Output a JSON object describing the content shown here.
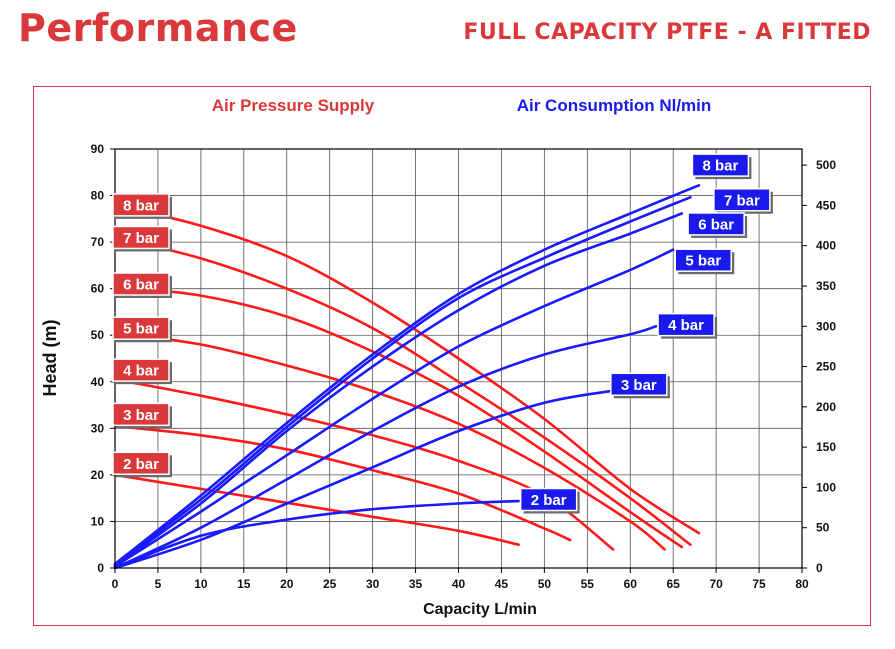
{
  "header": {
    "title": "Performance",
    "subtitle": "FULL CAPACITY PTFE - A FITTED"
  },
  "colors": {
    "brand_red": "#d9393a",
    "head_red": "#ff1a1a",
    "air_blue": "#1a1aff",
    "head_badge": "#d9393a",
    "air_badge": "#1a1aee"
  },
  "chart_data": {
    "type": "line",
    "legend": {
      "left": "Air Pressure Supply",
      "right": "Air Consumption Nl/min"
    },
    "xlabel": "Capacity L/min",
    "ylabel": "Head (m)",
    "y2label": "",
    "xlim": [
      0,
      80
    ],
    "ylim": [
      0,
      90
    ],
    "y2lim": [
      0,
      520
    ],
    "xticks": [
      "0",
      "5",
      "10",
      "15",
      "20",
      "25",
      "30",
      "35",
      "40",
      "45",
      "50",
      "55",
      "60",
      "65",
      "70",
      "75",
      "80"
    ],
    "yticks": [
      "0",
      "10",
      "20",
      "30",
      "40",
      "50",
      "60",
      "70",
      "80",
      "90"
    ],
    "y2ticks": [
      "0",
      "50",
      "100",
      "150",
      "200",
      "250",
      "300",
      "350",
      "400",
      "450",
      "500"
    ],
    "grid": true,
    "head_series": [
      {
        "name": "8 bar",
        "points": [
          [
            0,
            78
          ],
          [
            10,
            73.5
          ],
          [
            20,
            67
          ],
          [
            30,
            57
          ],
          [
            40,
            45
          ],
          [
            50,
            32
          ],
          [
            60,
            17
          ],
          [
            68,
            7.5
          ]
        ]
      },
      {
        "name": "7 bar",
        "points": [
          [
            0,
            71
          ],
          [
            10,
            66.5
          ],
          [
            20,
            60
          ],
          [
            30,
            51.5
          ],
          [
            40,
            40
          ],
          [
            50,
            28
          ],
          [
            60,
            15
          ],
          [
            67,
            5
          ]
        ]
      },
      {
        "name": "6 bar",
        "points": [
          [
            0,
            60.5
          ],
          [
            10,
            58.5
          ],
          [
            20,
            54
          ],
          [
            30,
            46.5
          ],
          [
            40,
            37
          ],
          [
            50,
            25
          ],
          [
            60,
            12
          ],
          [
            66,
            4.5
          ]
        ]
      },
      {
        "name": "5 bar",
        "points": [
          [
            0,
            50.5
          ],
          [
            10,
            48
          ],
          [
            20,
            43.5
          ],
          [
            30,
            38
          ],
          [
            40,
            31
          ],
          [
            50,
            21.5
          ],
          [
            60,
            10
          ],
          [
            64,
            4
          ]
        ]
      },
      {
        "name": "4 bar",
        "points": [
          [
            0,
            40.5
          ],
          [
            10,
            37
          ],
          [
            20,
            33
          ],
          [
            30,
            28.5
          ],
          [
            40,
            23
          ],
          [
            50,
            15.5
          ],
          [
            58,
            4
          ]
        ]
      },
      {
        "name": "3 bar",
        "points": [
          [
            0,
            30.5
          ],
          [
            10,
            28.5
          ],
          [
            20,
            25.5
          ],
          [
            30,
            21
          ],
          [
            40,
            16
          ],
          [
            50,
            8.5
          ],
          [
            53,
            6
          ]
        ]
      },
      {
        "name": "2 bar",
        "points": [
          [
            0,
            20
          ],
          [
            10,
            17
          ],
          [
            20,
            14
          ],
          [
            30,
            11
          ],
          [
            40,
            8
          ],
          [
            47,
            5
          ]
        ]
      }
    ],
    "air_series": [
      {
        "name": "8 bar",
        "points": [
          [
            0,
            5
          ],
          [
            10,
            90
          ],
          [
            20,
            180
          ],
          [
            30,
            265
          ],
          [
            40,
            340
          ],
          [
            50,
            395
          ],
          [
            60,
            440
          ],
          [
            68,
            475
          ]
        ]
      },
      {
        "name": "7 bar",
        "points": [
          [
            0,
            5
          ],
          [
            10,
            85
          ],
          [
            20,
            175
          ],
          [
            30,
            260
          ],
          [
            40,
            335
          ],
          [
            50,
            385
          ],
          [
            60,
            430
          ],
          [
            67,
            460
          ]
        ]
      },
      {
        "name": "6 bar",
        "points": [
          [
            0,
            3
          ],
          [
            10,
            80
          ],
          [
            20,
            170
          ],
          [
            30,
            250
          ],
          [
            40,
            320
          ],
          [
            50,
            375
          ],
          [
            60,
            415
          ],
          [
            66,
            440
          ]
        ]
      },
      {
        "name": "5 bar",
        "points": [
          [
            0,
            2
          ],
          [
            10,
            70
          ],
          [
            20,
            140
          ],
          [
            30,
            210
          ],
          [
            40,
            275
          ],
          [
            50,
            325
          ],
          [
            60,
            370
          ],
          [
            65,
            395
          ]
        ]
      },
      {
        "name": "4 bar",
        "points": [
          [
            0,
            0
          ],
          [
            10,
            50
          ],
          [
            20,
            110
          ],
          [
            30,
            170
          ],
          [
            40,
            225
          ],
          [
            50,
            265
          ],
          [
            60,
            290
          ],
          [
            63,
            300
          ]
        ]
      },
      {
        "name": "3 bar",
        "points": [
          [
            0,
            0
          ],
          [
            10,
            35
          ],
          [
            20,
            80
          ],
          [
            30,
            125
          ],
          [
            40,
            170
          ],
          [
            50,
            205
          ],
          [
            58,
            220
          ]
        ]
      },
      {
        "name": "2 bar",
        "points": [
          [
            0,
            0
          ],
          [
            10,
            40
          ],
          [
            20,
            60
          ],
          [
            30,
            73
          ],
          [
            40,
            80
          ],
          [
            47,
            83
          ]
        ]
      }
    ],
    "head_label_positions": [
      [
        "8 bar",
        78
      ],
      [
        "7 bar",
        71
      ],
      [
        "6 bar",
        61
      ],
      [
        "5 bar",
        51.5
      ],
      [
        "4 bar",
        42.5
      ],
      [
        "3 bar",
        33
      ],
      [
        "2 bar",
        22.5
      ]
    ],
    "air_label_positions": [
      [
        "8 bar",
        70.5,
        500
      ],
      [
        "7 bar",
        73,
        457
      ],
      [
        "6 bar",
        70,
        427
      ],
      [
        "5 bar",
        68.5,
        382
      ],
      [
        "4 bar",
        66.5,
        302
      ],
      [
        "3 bar",
        61,
        228
      ],
      [
        "2 bar",
        50.5,
        85
      ]
    ]
  }
}
